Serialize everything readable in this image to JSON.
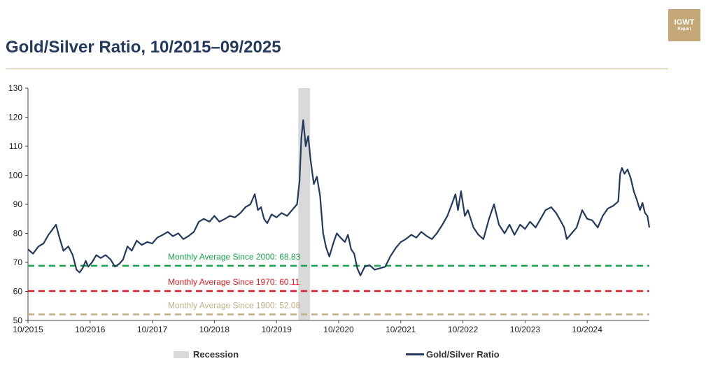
{
  "header": {
    "title": "Gold/Silver Ratio, 10/2015–09/2025",
    "logo_line1": "IGWT",
    "logo_line2": "Report"
  },
  "legend": {
    "recession_label": "Recession",
    "series_label": "Gold/Silver Ratio"
  },
  "colors": {
    "series": "#243a5e",
    "recession": "#d9d9d9",
    "avg2000": "#1aa04a",
    "avg1970": "#e11b22",
    "avg1900": "#c2ad84"
  },
  "chart_data": {
    "type": "line",
    "title": "Gold/Silver Ratio, 10/2015–09/2025",
    "xlabel": "",
    "ylabel": "",
    "ylim": [
      50,
      130
    ],
    "yticks": [
      50,
      60,
      70,
      80,
      90,
      100,
      110,
      120,
      130
    ],
    "xlim": [
      2015.75,
      2025.75
    ],
    "xticks": [
      {
        "x": 2015.75,
        "label": "10/2015"
      },
      {
        "x": 2016.75,
        "label": "10/2016"
      },
      {
        "x": 2017.75,
        "label": "10/2017"
      },
      {
        "x": 2018.75,
        "label": "10/2018"
      },
      {
        "x": 2019.75,
        "label": "10/2019"
      },
      {
        "x": 2020.75,
        "label": "10/2020"
      },
      {
        "x": 2021.75,
        "label": "10/2021"
      },
      {
        "x": 2022.75,
        "label": "10/2022"
      },
      {
        "x": 2023.75,
        "label": "10/2023"
      },
      {
        "x": 2024.75,
        "label": "10/2024"
      }
    ],
    "recession": {
      "start": 2020.1,
      "end": 2020.29,
      "label": "Recession"
    },
    "reference_lines": [
      {
        "name": "avg2000",
        "label": "Monthly Average Since 2000: 68.83",
        "value": 68.83
      },
      {
        "name": "avg1970",
        "label": "Monthly Average Since 1970: 60.11",
        "value": 60.11
      },
      {
        "name": "avg1900",
        "label": "Monthly Average Since 1900: 52.08",
        "value": 52.08
      }
    ],
    "series": [
      {
        "name": "Gold/Silver Ratio",
        "points": [
          [
            2015.75,
            74.5
          ],
          [
            2015.83,
            73.0
          ],
          [
            2015.92,
            75.5
          ],
          [
            2016.0,
            76.5
          ],
          [
            2016.08,
            79.5
          ],
          [
            2016.15,
            81.5
          ],
          [
            2016.2,
            83.0
          ],
          [
            2016.25,
            79.0
          ],
          [
            2016.32,
            74.0
          ],
          [
            2016.4,
            75.5
          ],
          [
            2016.47,
            72.5
          ],
          [
            2016.53,
            67.5
          ],
          [
            2016.58,
            66.5
          ],
          [
            2016.63,
            68.0
          ],
          [
            2016.68,
            70.5
          ],
          [
            2016.72,
            68.5
          ],
          [
            2016.78,
            70.0
          ],
          [
            2016.85,
            72.5
          ],
          [
            2016.92,
            71.5
          ],
          [
            2017.0,
            72.5
          ],
          [
            2017.08,
            71.0
          ],
          [
            2017.15,
            68.5
          ],
          [
            2017.22,
            69.5
          ],
          [
            2017.28,
            71.0
          ],
          [
            2017.35,
            75.5
          ],
          [
            2017.42,
            74.0
          ],
          [
            2017.5,
            77.5
          ],
          [
            2017.58,
            76.0
          ],
          [
            2017.67,
            77.0
          ],
          [
            2017.75,
            76.5
          ],
          [
            2017.83,
            78.5
          ],
          [
            2017.92,
            79.5
          ],
          [
            2018.0,
            80.5
          ],
          [
            2018.08,
            79.0
          ],
          [
            2018.17,
            80.0
          ],
          [
            2018.25,
            78.0
          ],
          [
            2018.33,
            79.0
          ],
          [
            2018.42,
            80.5
          ],
          [
            2018.5,
            84.0
          ],
          [
            2018.58,
            85.0
          ],
          [
            2018.67,
            84.0
          ],
          [
            2018.75,
            86.0
          ],
          [
            2018.83,
            84.0
          ],
          [
            2018.92,
            85.0
          ],
          [
            2019.0,
            86.0
          ],
          [
            2019.08,
            85.5
          ],
          [
            2019.17,
            87.0
          ],
          [
            2019.25,
            89.0
          ],
          [
            2019.33,
            90.0
          ],
          [
            2019.4,
            93.5
          ],
          [
            2019.45,
            88.0
          ],
          [
            2019.5,
            89.0
          ],
          [
            2019.55,
            85.0
          ],
          [
            2019.6,
            83.5
          ],
          [
            2019.67,
            86.5
          ],
          [
            2019.75,
            85.5
          ],
          [
            2019.83,
            87.0
          ],
          [
            2019.92,
            86.0
          ],
          [
            2020.0,
            88.0
          ],
          [
            2020.08,
            90.0
          ],
          [
            2020.12,
            98.0
          ],
          [
            2020.15,
            113.0
          ],
          [
            2020.18,
            119.0
          ],
          [
            2020.22,
            110.0
          ],
          [
            2020.26,
            113.5
          ],
          [
            2020.3,
            105.0
          ],
          [
            2020.35,
            97.0
          ],
          [
            2020.4,
            99.5
          ],
          [
            2020.45,
            93.0
          ],
          [
            2020.5,
            80.0
          ],
          [
            2020.55,
            75.0
          ],
          [
            2020.6,
            72.0
          ],
          [
            2020.67,
            77.0
          ],
          [
            2020.72,
            80.0
          ],
          [
            2020.78,
            78.5
          ],
          [
            2020.85,
            77.0
          ],
          [
            2020.9,
            79.5
          ],
          [
            2020.95,
            74.5
          ],
          [
            2021.0,
            73.0
          ],
          [
            2021.05,
            68.0
          ],
          [
            2021.1,
            65.5
          ],
          [
            2021.17,
            68.5
          ],
          [
            2021.25,
            69.0
          ],
          [
            2021.33,
            67.5
          ],
          [
            2021.42,
            68.0
          ],
          [
            2021.5,
            68.5
          ],
          [
            2021.58,
            72.0
          ],
          [
            2021.67,
            75.0
          ],
          [
            2021.75,
            77.0
          ],
          [
            2021.83,
            78.0
          ],
          [
            2021.92,
            79.5
          ],
          [
            2022.0,
            78.5
          ],
          [
            2022.08,
            80.5
          ],
          [
            2022.17,
            79.0
          ],
          [
            2022.25,
            78.0
          ],
          [
            2022.33,
            80.0
          ],
          [
            2022.42,
            83.0
          ],
          [
            2022.5,
            86.0
          ],
          [
            2022.58,
            90.5
          ],
          [
            2022.63,
            93.5
          ],
          [
            2022.67,
            88.0
          ],
          [
            2022.72,
            94.5
          ],
          [
            2022.78,
            86.0
          ],
          [
            2022.83,
            88.0
          ],
          [
            2022.92,
            82.0
          ],
          [
            2023.0,
            79.5
          ],
          [
            2023.08,
            78.0
          ],
          [
            2023.17,
            85.0
          ],
          [
            2023.25,
            90.0
          ],
          [
            2023.33,
            83.0
          ],
          [
            2023.42,
            80.0
          ],
          [
            2023.5,
            83.0
          ],
          [
            2023.58,
            79.5
          ],
          [
            2023.67,
            83.0
          ],
          [
            2023.75,
            81.5
          ],
          [
            2023.83,
            84.0
          ],
          [
            2023.92,
            82.0
          ],
          [
            2024.0,
            85.0
          ],
          [
            2024.08,
            88.0
          ],
          [
            2024.17,
            89.0
          ],
          [
            2024.25,
            87.0
          ],
          [
            2024.33,
            84.0
          ],
          [
            2024.38,
            82.0
          ],
          [
            2024.42,
            78.0
          ],
          [
            2024.5,
            80.0
          ],
          [
            2024.58,
            82.0
          ],
          [
            2024.67,
            88.0
          ],
          [
            2024.75,
            85.0
          ],
          [
            2024.83,
            84.5
          ],
          [
            2024.92,
            82.0
          ],
          [
            2025.0,
            86.0
          ],
          [
            2025.08,
            88.5
          ],
          [
            2025.17,
            89.5
          ],
          [
            2025.25,
            91.0
          ],
          [
            2025.28,
            100.5
          ],
          [
            2025.31,
            102.5
          ],
          [
            2025.35,
            100.5
          ],
          [
            2025.4,
            102.0
          ],
          [
            2025.45,
            99.0
          ],
          [
            2025.5,
            94.5
          ],
          [
            2025.55,
            91.5
          ],
          [
            2025.6,
            88.0
          ],
          [
            2025.64,
            90.5
          ],
          [
            2025.68,
            87.0
          ],
          [
            2025.72,
            86.0
          ],
          [
            2025.75,
            82.0
          ]
        ]
      }
    ]
  }
}
